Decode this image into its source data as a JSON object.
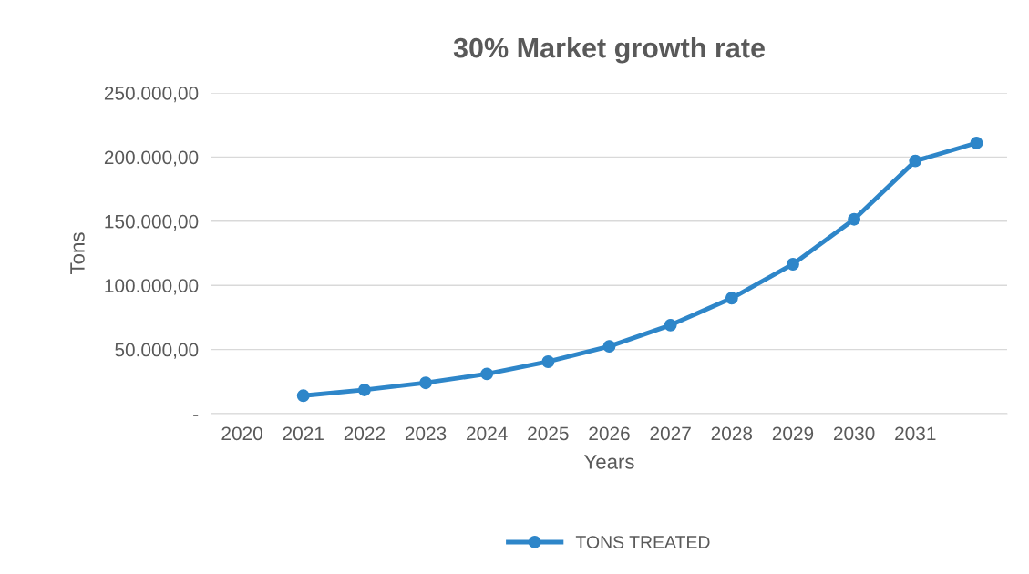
{
  "chart_data": {
    "type": "line",
    "title": "30% Market growth rate",
    "xlabel": "Years",
    "ylabel": "Tons",
    "categories": [
      "2020",
      "2021",
      "2022",
      "2023",
      "2024",
      "2025",
      "2026",
      "2027",
      "2028",
      "2029",
      "2030",
      "2031",
      null
    ],
    "series": [
      {
        "name": "TONS TREATED",
        "color": "#2e86c9",
        "values": [
          null,
          14000,
          18500,
          24000,
          31000,
          40500,
          52500,
          69000,
          90000,
          116500,
          151500,
          197000,
          211000
        ]
      }
    ],
    "ylim": [
      0,
      250000
    ],
    "yticks": [
      {
        "value": 0,
        "label": "-"
      },
      {
        "value": 50000,
        "label": "50.000,00"
      },
      {
        "value": 100000,
        "label": "100.000,00"
      },
      {
        "value": 150000,
        "label": "150.000,00"
      },
      {
        "value": 200000,
        "label": "200.000,00"
      },
      {
        "value": 250000,
        "label": "250.000,00"
      }
    ],
    "grid": "y",
    "legend": "bottom",
    "marker": "circle",
    "line_style": "solid"
  }
}
